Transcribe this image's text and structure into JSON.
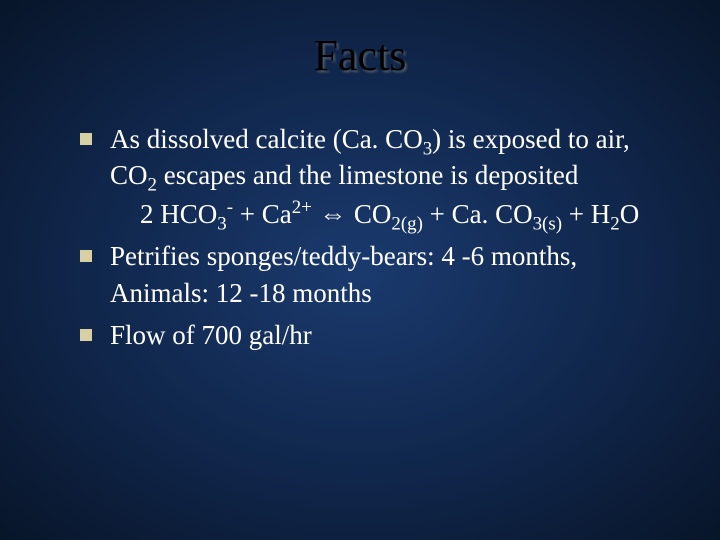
{
  "slide": {
    "title": "Facts",
    "title_color": "#000000",
    "title_fontsize": 44,
    "background_gradient": [
      "#1a3a6e",
      "#0f2447",
      "#081529"
    ],
    "bullet_color": "#d8cfa3",
    "text_color": "#ffffff",
    "body_fontsize": 27,
    "font_family": "Times New Roman",
    "bullets": [
      {
        "text_parts": {
          "a": "As dissolved calcite (Ca. CO",
          "b": ") is exposed to air, CO",
          "c": " escapes and the limestone is deposited"
        },
        "sub1": "3",
        "sub2": "2",
        "equation": {
          "p1": " 2 HCO",
          "s1": "3",
          "sup1": "-",
          "p2": " + Ca",
          "sup2": "2+",
          "arrow": " ⇔ ",
          "p3": "CO",
          "s3": "2(g)",
          "p4": " + Ca. CO",
          "s4": "3(s)",
          "p5": " + H",
          "s5": "2",
          "p6": "O"
        }
      },
      {
        "text": "Petrifies sponges/teddy-bears: 4 -6 months, Animals: 12 -18 months"
      },
      {
        "text": "Flow of 700 gal/hr"
      }
    ]
  }
}
